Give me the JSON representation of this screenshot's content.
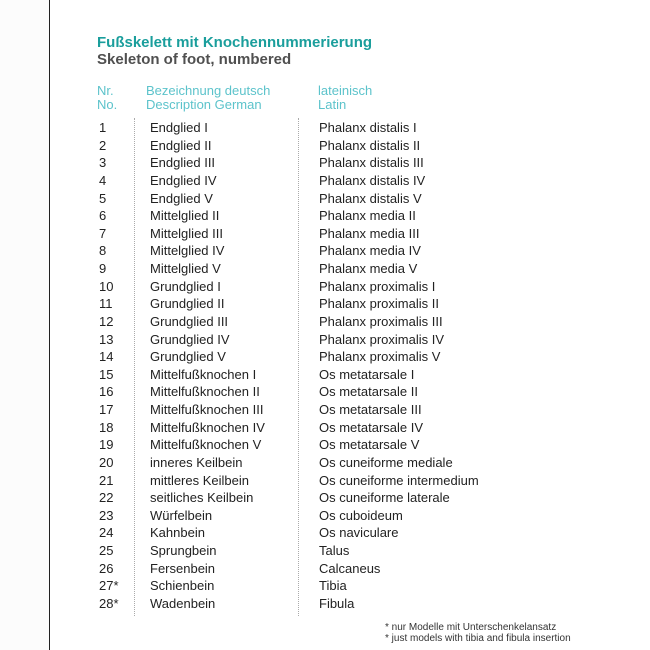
{
  "title": "Fußskelett mit Knochennummerierung",
  "subtitle": "Skeleton of foot, numbered",
  "headers": {
    "nr_de": "Nr.",
    "nr_en": "No.",
    "desc_de": "Bezeichnung deutsch",
    "desc_en": "Description German",
    "latin_de": "lateinisch",
    "latin_en": "Latin"
  },
  "rows": [
    [
      "1",
      "Endglied I",
      "Phalanx distalis I"
    ],
    [
      "2",
      "Endglied II",
      "Phalanx distalis II"
    ],
    [
      "3",
      "Endglied III",
      "Phalanx distalis III"
    ],
    [
      "4",
      "Endglied IV",
      "Phalanx distalis IV"
    ],
    [
      "5",
      "Endglied V",
      "Phalanx distalis V"
    ],
    [
      "6",
      "Mittelglied II",
      "Phalanx media II"
    ],
    [
      "7",
      "Mittelglied III",
      "Phalanx media III"
    ],
    [
      "8",
      "Mittelglied IV",
      "Phalanx media IV"
    ],
    [
      "9",
      "Mittelglied V",
      "Phalanx media V"
    ],
    [
      "10",
      "Grundglied I",
      "Phalanx proximalis I"
    ],
    [
      "11",
      "Grundglied II",
      "Phalanx proximalis II"
    ],
    [
      "12",
      "Grundglied III",
      "Phalanx proximalis III"
    ],
    [
      "13",
      "Grundglied IV",
      "Phalanx proximalis IV"
    ],
    [
      "14",
      "Grundglied V",
      "Phalanx proximalis V"
    ],
    [
      "15",
      "Mittelfußknochen I",
      "Os metatarsale I"
    ],
    [
      "16",
      "Mittelfußknochen II",
      "Os metatarsale II"
    ],
    [
      "17",
      "Mittelfußknochen III",
      "Os metatarsale III"
    ],
    [
      "18",
      "Mittelfußknochen IV",
      "Os metatarsale IV"
    ],
    [
      "19",
      "Mittelfußknochen V",
      "Os metatarsale V"
    ],
    [
      "20",
      "inneres Keilbein",
      "Os cuneiforme mediale"
    ],
    [
      "21",
      "mittleres Keilbein",
      "Os cuneiforme intermedium"
    ],
    [
      "22",
      "seitliches Keilbein",
      "Os cuneiforme laterale"
    ],
    [
      "23",
      "Würfelbein",
      "Os cuboideum"
    ],
    [
      "24",
      "Kahnbein",
      "Os naviculare"
    ],
    [
      "25",
      "Sprungbein",
      "Talus"
    ],
    [
      "26",
      "Fersenbein",
      "Calcaneus"
    ],
    [
      "27*",
      "Schienbein",
      "Tibia"
    ],
    [
      "28*",
      "Wadenbein",
      "Fibula"
    ]
  ],
  "footnotes": [
    "* nur Modelle mit Unterschenkelansatz",
    "* just models with tibia and fibula insertion"
  ],
  "colors": {
    "title": "#1a9e9c",
    "header": "#5cc3cb",
    "text": "#222222"
  }
}
